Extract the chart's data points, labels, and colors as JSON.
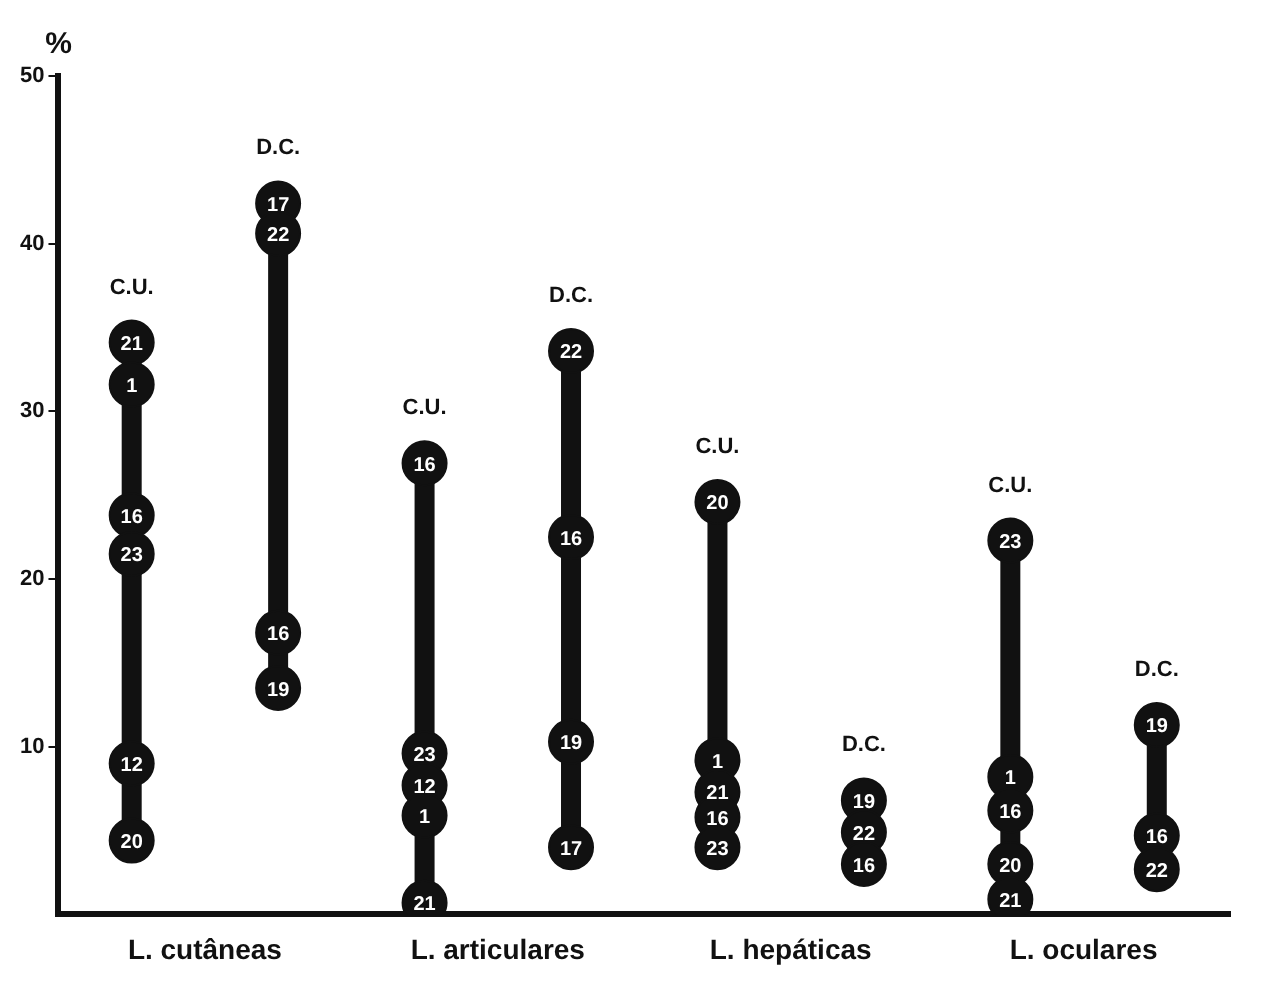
{
  "chart_data": {
    "type": "scatter",
    "ylabel": "%",
    "categories": [
      "L. cutâneas",
      "L. articulares",
      "L. hepáticas",
      "L. oculares"
    ],
    "ylim": [
      0,
      50
    ],
    "yticks": [
      10,
      20,
      30,
      40,
      50
    ],
    "grid": false,
    "legend": false,
    "marker": "circle",
    "series": [
      {
        "name": "C.U.",
        "color": "#111111",
        "x": [
          "L. cutâneas",
          "L. cutâneas",
          "L. cutâneas",
          "L. cutâneas",
          "L. cutâneas",
          "L. cutâneas",
          "L. articulares",
          "L. articulares",
          "L. articulares",
          "L. articulares",
          "L. articulares",
          "L. hepáticas",
          "L. hepáticas",
          "L. hepáticas",
          "L. hepáticas",
          "L. hepáticas",
          "L. oculares",
          "L. oculares",
          "L. oculares",
          "L. oculares",
          "L. oculares"
        ],
        "values": [
          34.1,
          31.6,
          23.8,
          21.5,
          9.0,
          4.4,
          26.9,
          9.6,
          7.7,
          5.9,
          0.7,
          24.6,
          9.2,
          7.3,
          5.8,
          4.0,
          22.3,
          8.2,
          6.2,
          3.0,
          0.9
        ]
      },
      {
        "name": "D.C.",
        "color": "#111111",
        "x": [
          "L. cutâneas",
          "L. cutâneas",
          "L. cutâneas",
          "L. cutâneas",
          "L. articulares",
          "L. articulares",
          "L. articulares",
          "L. articulares",
          "L. hepáticas",
          "L. hepáticas",
          "L. hepáticas",
          "L. oculares",
          "L. oculares",
          "L. oculares"
        ],
        "values": [
          42.4,
          40.6,
          16.8,
          13.5,
          33.6,
          22.5,
          10.3,
          4.0,
          6.8,
          4.9,
          3.0,
          11.3,
          4.7,
          2.7
        ]
      }
    ],
    "annotations": [
      "21",
      "1",
      "16",
      "23",
      "12",
      "20",
      "16",
      "23",
      "12",
      "1",
      "21",
      "20",
      "1",
      "21",
      "16",
      "23",
      "23",
      "1",
      "16",
      "20",
      "21",
      "17",
      "22",
      "16",
      "19",
      "22",
      "16",
      "19",
      "17",
      "19",
      "22",
      "16",
      "19",
      "16",
      "22"
    ]
  }
}
